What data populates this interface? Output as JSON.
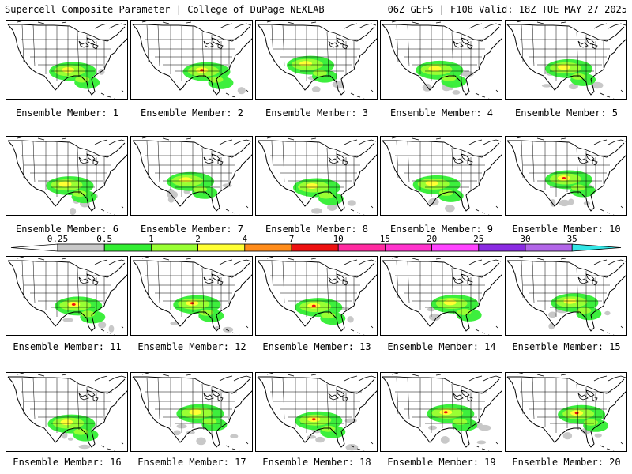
{
  "header": {
    "title_left": "Supercell Composite Parameter | College of DuPage NEXLAB",
    "title_right": "06Z GEFS | F108 Valid: 18Z TUE MAY 27 2025"
  },
  "colorbar": {
    "ticks": [
      "0.25",
      "0.5",
      "1",
      "2",
      "4",
      "7",
      "10",
      "15",
      "20",
      "25",
      "30",
      "35"
    ],
    "colors": [
      "#c8c8c8",
      "#33ee33",
      "#99ff33",
      "#ffff33",
      "#ff8c1a",
      "#ee1111",
      "#ff2aa0",
      "#ff33cc",
      "#ff44ff",
      "#8a2be2",
      "#b266e8",
      "#33e6e6"
    ]
  },
  "members": [
    {
      "label": "Ensemble Member: 1"
    },
    {
      "label": "Ensemble Member: 2"
    },
    {
      "label": "Ensemble Member: 3"
    },
    {
      "label": "Ensemble Member: 4"
    },
    {
      "label": "Ensemble Member: 5"
    },
    {
      "label": "Ensemble Member: 6"
    },
    {
      "label": "Ensemble Member: 7"
    },
    {
      "label": "Ensemble Member: 8"
    },
    {
      "label": "Ensemble Member: 9"
    },
    {
      "label": "Ensemble Member: 10"
    },
    {
      "label": "Ensemble Member: 11"
    },
    {
      "label": "Ensemble Member: 12"
    },
    {
      "label": "Ensemble Member: 13"
    },
    {
      "label": "Ensemble Member: 14"
    },
    {
      "label": "Ensemble Member: 15"
    },
    {
      "label": "Ensemble Member: 16"
    },
    {
      "label": "Ensemble Member: 17"
    },
    {
      "label": "Ensemble Member: 18"
    },
    {
      "label": "Ensemble Member: 19"
    },
    {
      "label": "Ensemble Member: 20"
    }
  ]
}
